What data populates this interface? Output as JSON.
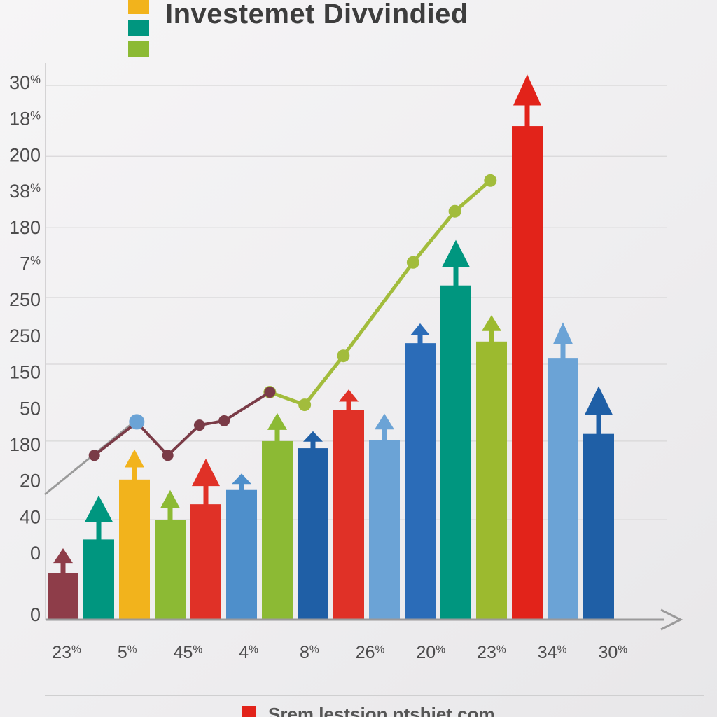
{
  "title": "Investemet Divvindied",
  "top_legend": {
    "swatches": [
      {
        "name": "series-yellow",
        "color": "#F2B31C"
      },
      {
        "name": "series-teal",
        "color": "#00967F"
      },
      {
        "name": "series-green",
        "color": "#8CBA34"
      }
    ]
  },
  "footer": {
    "swatch_color": "#E2231A",
    "label": "Srem lestsion ntshiet com"
  },
  "chart_data": {
    "type": "bar",
    "title": "Investemet Divvindied",
    "background": "#F1F0F1",
    "grid": true,
    "legend_position": "top-left",
    "x_axis_labels": [
      "23%",
      "5%",
      "45%",
      "4%",
      "8%",
      "26%",
      "20%",
      "23%",
      "34%",
      "30%"
    ],
    "y_axis_labels": [
      "30%",
      "18%",
      "200",
      "38%",
      "180",
      "7%",
      "250",
      "250",
      "150",
      "50",
      "180",
      "20",
      "40",
      "0",
      "0"
    ],
    "gridlines_v": [
      97.2,
      84.3,
      71.3,
      58.6,
      46.5,
      32.5,
      18.2
    ],
    "bars": [
      {
        "color": "#8E3D49",
        "value": 8.5,
        "arrow": 4.5
      },
      {
        "color": "#00967F",
        "value": 14.6,
        "arrow": 8.0
      },
      {
        "color": "#F2B31C",
        "value": 25.5,
        "arrow": 5.5
      },
      {
        "color": "#8CBA34",
        "value": 18.1,
        "arrow": 5.5
      },
      {
        "color": "#E03127",
        "value": 21.0,
        "arrow": 8.3
      },
      {
        "color": "#4E8FCB",
        "value": 23.6,
        "arrow": 3.0
      },
      {
        "color": "#8CBA34",
        "value": 32.5,
        "arrow": 5.1
      },
      {
        "color": "#1F5FA6",
        "value": 31.2,
        "arrow": 3.1
      },
      {
        "color": "#E03127",
        "value": 38.2,
        "arrow": 3.7
      },
      {
        "color": "#6BA3D6",
        "value": 32.7,
        "arrow": 4.8
      },
      {
        "color": "#2B6CB8",
        "value": 50.3,
        "arrow": 3.6
      },
      {
        "color": "#00967F",
        "value": 60.8,
        "arrow": 8.3
      },
      {
        "color": "#9CBA2F",
        "value": 50.6,
        "arrow": 4.8
      },
      {
        "color": "#E2231A",
        "value": 89.8,
        "arrow": 9.4
      },
      {
        "color": "#6BA3D6",
        "value": 47.5,
        "arrow": 6.6
      },
      {
        "color": "#1F5FA6",
        "value": 33.8,
        "arrow": 8.7
      }
    ],
    "lines": [
      {
        "name": "gray-trend-segment",
        "color": "#9B9B9B",
        "width": 3,
        "marker_r": 0,
        "points": [
          {
            "x": 0,
            "v": 22.9
          },
          {
            "x": 14.1,
            "v": 36.1
          }
        ]
      },
      {
        "name": "green-trend-line",
        "color": "#A2BC3C",
        "width": 5,
        "marker_r": 9,
        "points": [
          {
            "x": 35.4,
            "v": 41.4
          },
          {
            "x": 40.9,
            "v": 39.1
          },
          {
            "x": 47.0,
            "v": 48.0
          },
          {
            "x": 58.0,
            "v": 65.0
          },
          {
            "x": 64.6,
            "v": 74.3
          },
          {
            "x": 70.2,
            "v": 79.9
          }
        ]
      },
      {
        "name": "maroon-trend-line",
        "color": "#7A3B47",
        "width": 4,
        "marker_r": 8,
        "points": [
          {
            "x": 7.7,
            "v": 29.9
          },
          {
            "x": 14.4,
            "v": 35.9
          },
          {
            "x": 19.3,
            "v": 29.9
          },
          {
            "x": 24.3,
            "v": 35.4
          },
          {
            "x": 28.2,
            "v": 36.2
          },
          {
            "x": 35.4,
            "v": 41.4
          }
        ]
      }
    ],
    "point_markers": [
      {
        "name": "blue-dot-marker",
        "color": "#6BA3D6",
        "r": 11,
        "x": 14.4,
        "v": 36.0
      }
    ]
  }
}
